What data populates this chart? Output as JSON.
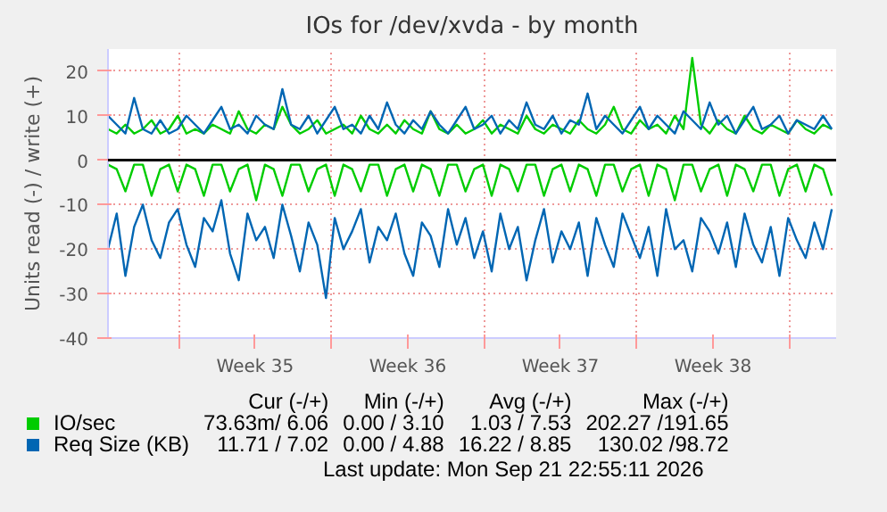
{
  "chart_data": {
    "type": "line",
    "title": "IOs for /dev/xvda - by month",
    "ylabel": "Units read (-) / write (+)",
    "x": [
      "2026-08-20T18:00",
      "2026-08-21T03:36",
      "2026-08-21T13:12",
      "2026-08-21T22:48",
      "2026-08-22T08:24",
      "2026-08-22T18:00",
      "2026-08-23T03:36",
      "2026-08-23T13:12",
      "2026-08-23T22:48",
      "2026-08-24T08:24",
      "2026-08-24T18:00",
      "2026-08-25T03:36",
      "2026-08-25T13:12",
      "2026-08-25T22:48",
      "2026-08-26T08:24",
      "2026-08-26T18:00",
      "2026-08-27T03:36",
      "2026-08-27T13:12",
      "2026-08-27T22:48",
      "2026-08-28T08:24",
      "2026-08-28T18:00",
      "2026-08-29T03:36",
      "2026-08-29T13:12",
      "2026-08-29T22:48",
      "2026-08-30T08:24",
      "2026-08-30T18:00",
      "2026-08-31T03:36",
      "2026-08-31T13:12",
      "2026-08-31T22:48",
      "2026-09-01T08:24",
      "2026-09-01T18:00",
      "2026-09-02T03:36",
      "2026-09-02T13:12",
      "2026-09-02T22:48",
      "2026-09-03T08:24",
      "2026-09-03T18:00",
      "2026-09-04T03:36",
      "2026-09-04T13:12",
      "2026-09-04T22:48",
      "2026-09-05T08:24",
      "2026-09-05T18:00",
      "2026-09-06T03:36",
      "2026-09-06T13:12",
      "2026-09-06T22:48",
      "2026-09-07T08:24",
      "2026-09-07T18:00",
      "2026-09-08T03:36",
      "2026-09-08T13:12",
      "2026-09-08T22:48",
      "2026-09-09T08:24",
      "2026-09-09T18:00",
      "2026-09-10T03:36",
      "2026-09-10T13:12",
      "2026-09-10T22:48",
      "2026-09-11T08:24",
      "2026-09-11T18:00",
      "2026-09-12T03:36",
      "2026-09-12T13:12",
      "2026-09-12T22:48",
      "2026-09-13T08:24",
      "2026-09-13T18:00",
      "2026-09-14T03:36",
      "2026-09-14T13:12",
      "2026-09-14T22:48",
      "2026-09-15T08:24",
      "2026-09-15T18:00",
      "2026-09-16T03:36",
      "2026-09-16T13:12",
      "2026-09-16T22:48",
      "2026-09-17T08:24",
      "2026-09-17T18:00",
      "2026-09-18T03:36",
      "2026-09-18T13:12",
      "2026-09-18T22:48",
      "2026-09-19T08:24",
      "2026-09-19T18:00",
      "2026-09-20T03:36",
      "2026-09-20T13:12",
      "2026-09-20T22:48",
      "2026-09-21T08:24",
      "2026-09-21T18:00",
      "2026-09-22T03:36",
      "2026-09-22T13:12",
      "2026-09-22T22:48"
    ],
    "xlim": [
      "2026-08-20T18:00",
      "2026-09-23T03:36"
    ],
    "xticks": [
      {
        "value": "2026-08-24",
        "label": null
      },
      {
        "value": "2026-08-27T12:00",
        "label": "Week 35"
      },
      {
        "value": "2026-08-31",
        "label": null
      },
      {
        "value": "2026-09-03T12:00",
        "label": "Week 36"
      },
      {
        "value": "2026-09-07",
        "label": null
      },
      {
        "value": "2026-09-10T12:00",
        "label": "Week 37"
      },
      {
        "value": "2026-09-14",
        "label": null
      },
      {
        "value": "2026-09-17T12:00",
        "label": "Week 38"
      },
      {
        "value": "2026-09-21",
        "label": null
      }
    ],
    "ylim": [
      -40,
      25
    ],
    "yticks": [
      -40,
      -30,
      -20,
      -10,
      0,
      10,
      20
    ],
    "grid": true,
    "legend": "bottom",
    "series": [
      {
        "name": "IO/sec",
        "color": "#00cc00",
        "values": [
          7,
          6,
          8,
          6,
          7,
          9,
          6,
          7,
          10,
          6,
          7,
          6,
          8,
          7,
          6,
          11,
          7,
          6,
          8,
          7,
          12,
          8,
          6,
          7,
          9,
          6,
          7,
          8,
          6,
          10,
          7,
          6,
          8,
          6,
          9,
          7,
          6,
          11,
          7,
          6,
          8,
          6,
          7,
          9,
          6,
          8,
          7,
          6,
          10,
          7,
          6,
          8,
          7,
          6,
          9,
          7,
          6,
          8,
          12,
          7,
          6,
          9,
          7,
          8,
          6,
          10,
          7,
          23,
          8,
          6,
          9,
          7,
          6,
          10,
          7,
          6,
          8,
          7,
          6,
          9,
          7,
          6,
          8,
          7
        ]
      },
      {
        "name": "Req Size (KB)",
        "color": "#0066b3",
        "values": [
          10,
          8,
          6,
          14,
          7,
          6,
          9,
          6,
          7,
          10,
          8,
          6,
          9,
          12,
          7,
          8,
          6,
          10,
          8,
          7,
          16,
          8,
          7,
          10,
          6,
          9,
          12,
          7,
          8,
          6,
          10,
          7,
          13,
          8,
          6,
          9,
          7,
          11,
          8,
          6,
          9,
          12,
          7,
          8,
          10,
          6,
          9,
          7,
          13,
          8,
          7,
          10,
          6,
          9,
          8,
          15,
          7,
          10,
          8,
          6,
          9,
          12,
          7,
          10,
          8,
          6,
          11,
          9,
          7,
          13,
          8,
          10,
          6,
          9,
          12,
          7,
          8,
          10,
          6,
          9,
          8,
          7,
          10,
          7
        ]
      },
      {
        "color": "#00cc00",
        "values": [
          -1,
          -2,
          -7,
          -1,
          -1,
          -8,
          -2,
          -1,
          -7,
          -1,
          -2,
          -8,
          -1,
          -1,
          -7,
          -2,
          -1,
          -9,
          -1,
          -2,
          -8,
          -1,
          -1,
          -7,
          -2,
          -1,
          -8,
          -1,
          -2,
          -7,
          -1,
          -1,
          -8,
          -2,
          -1,
          -7,
          -1,
          -2,
          -8,
          -1,
          -1,
          -7,
          -2,
          -1,
          -8,
          -1,
          -2,
          -7,
          -1,
          -1,
          -8,
          -2,
          -1,
          -7,
          -1,
          -2,
          -8,
          -1,
          -1,
          -7,
          -2,
          -1,
          -8,
          -1,
          -2,
          -9,
          -1,
          -1,
          -7,
          -2,
          -1,
          -8,
          -1,
          -2,
          -7,
          -1,
          -1,
          -8,
          -2,
          -1,
          -7,
          -1,
          -2,
          -8
        ]
      },
      {
        "color": "#0066b3",
        "values": [
          -20,
          -12,
          -26,
          -15,
          -10,
          -18,
          -22,
          -14,
          -11,
          -19,
          -24,
          -13,
          -16,
          -9,
          -21,
          -27,
          -12,
          -18,
          -15,
          -22,
          -10,
          -17,
          -25,
          -14,
          -19,
          -31,
          -13,
          -20,
          -16,
          -11,
          -23,
          -15,
          -18,
          -12,
          -21,
          -26,
          -14,
          -17,
          -24,
          -11,
          -19,
          -13,
          -22,
          -16,
          -25,
          -12,
          -20,
          -15,
          -27,
          -18,
          -11,
          -23,
          -16,
          -20,
          -14,
          -26,
          -13,
          -19,
          -24,
          -12,
          -17,
          -22,
          -15,
          -26,
          -11,
          -20,
          -18,
          -25,
          -13,
          -16,
          -21,
          -14,
          -24,
          -12,
          -19,
          -23,
          -15,
          -26,
          -13,
          -18,
          -22,
          -14,
          -20,
          -11
        ]
      }
    ],
    "ref_lines": [
      {
        "axis": "y",
        "value": 0,
        "color": "#000000"
      }
    ],
    "annotations": [
      "Cur (-/+)",
      "Min (-/+)",
      "Avg (-/+)",
      "Max (-/+)",
      "73.63m/ 6.06",
      "0.00 / 3.10",
      "1.03 / 7.53",
      "202.27 /191.65",
      "11.71 / 7.02",
      "0.00 / 4.88",
      "16.22 / 8.85",
      "130.02 /98.72",
      "Last update: Mon Sep 21 22:55:11 2026"
    ]
  }
}
